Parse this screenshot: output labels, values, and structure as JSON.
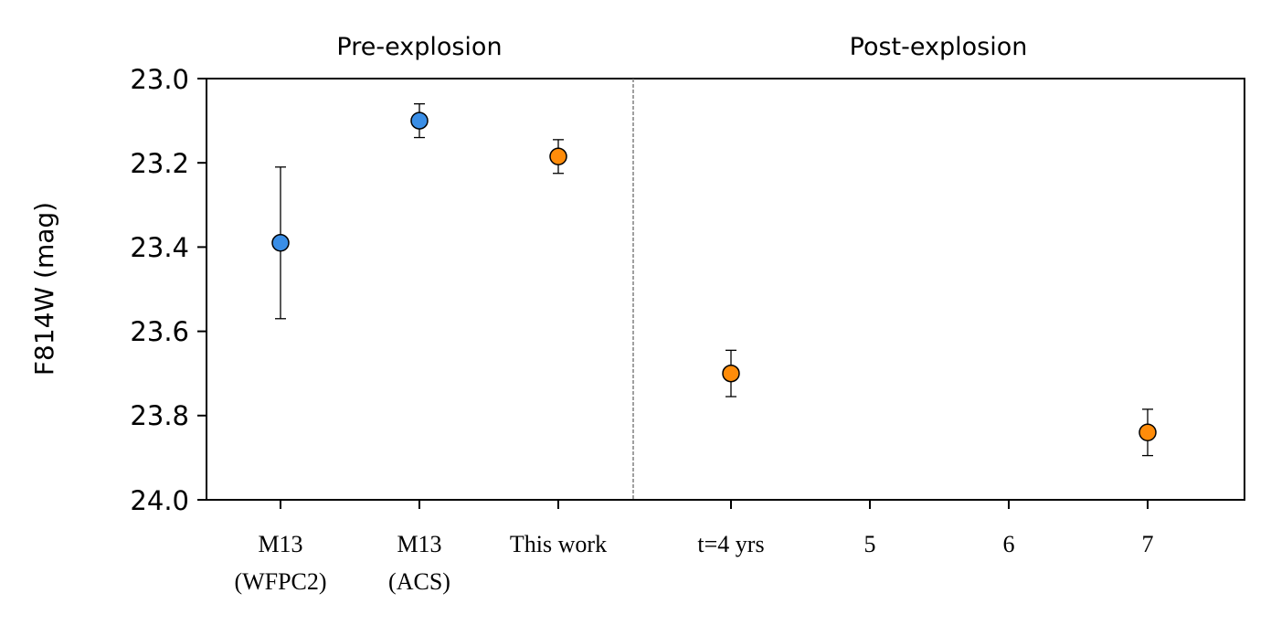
{
  "chart_data": {
    "type": "scatter",
    "ylabel": "F814W (mag)",
    "ylim": [
      24.0,
      23.0
    ],
    "y_inverted": true,
    "yticks": [
      "23.0",
      "23.2",
      "23.4",
      "23.6",
      "23.8",
      "24.0"
    ],
    "grid": false,
    "legend": "none",
    "sections": [
      {
        "title": "Pre-explosion",
        "categories": [
          [
            "M13",
            "(WFPC2)"
          ],
          [
            "M13",
            "(ACS)"
          ],
          [
            "This work"
          ]
        ]
      },
      {
        "title": "Post-explosion",
        "xticks": [
          "t=4 yrs",
          "5",
          "6",
          "7"
        ]
      }
    ],
    "series": [
      {
        "color": "#3a8ee6",
        "points": [
          {
            "x": "M13 (WFPC2)",
            "y": 23.39,
            "err": 0.18
          },
          {
            "x": "M13 (ACS)",
            "y": 23.1,
            "err": 0.04
          }
        ]
      },
      {
        "color": "#ff8c0a",
        "points": [
          {
            "x": "This work",
            "y": 23.185,
            "err": 0.04
          },
          {
            "x": 4,
            "y": 23.7,
            "err": 0.055
          },
          {
            "x": 7,
            "y": 23.84,
            "err": 0.055
          }
        ]
      }
    ],
    "divider_color": "#808080"
  }
}
